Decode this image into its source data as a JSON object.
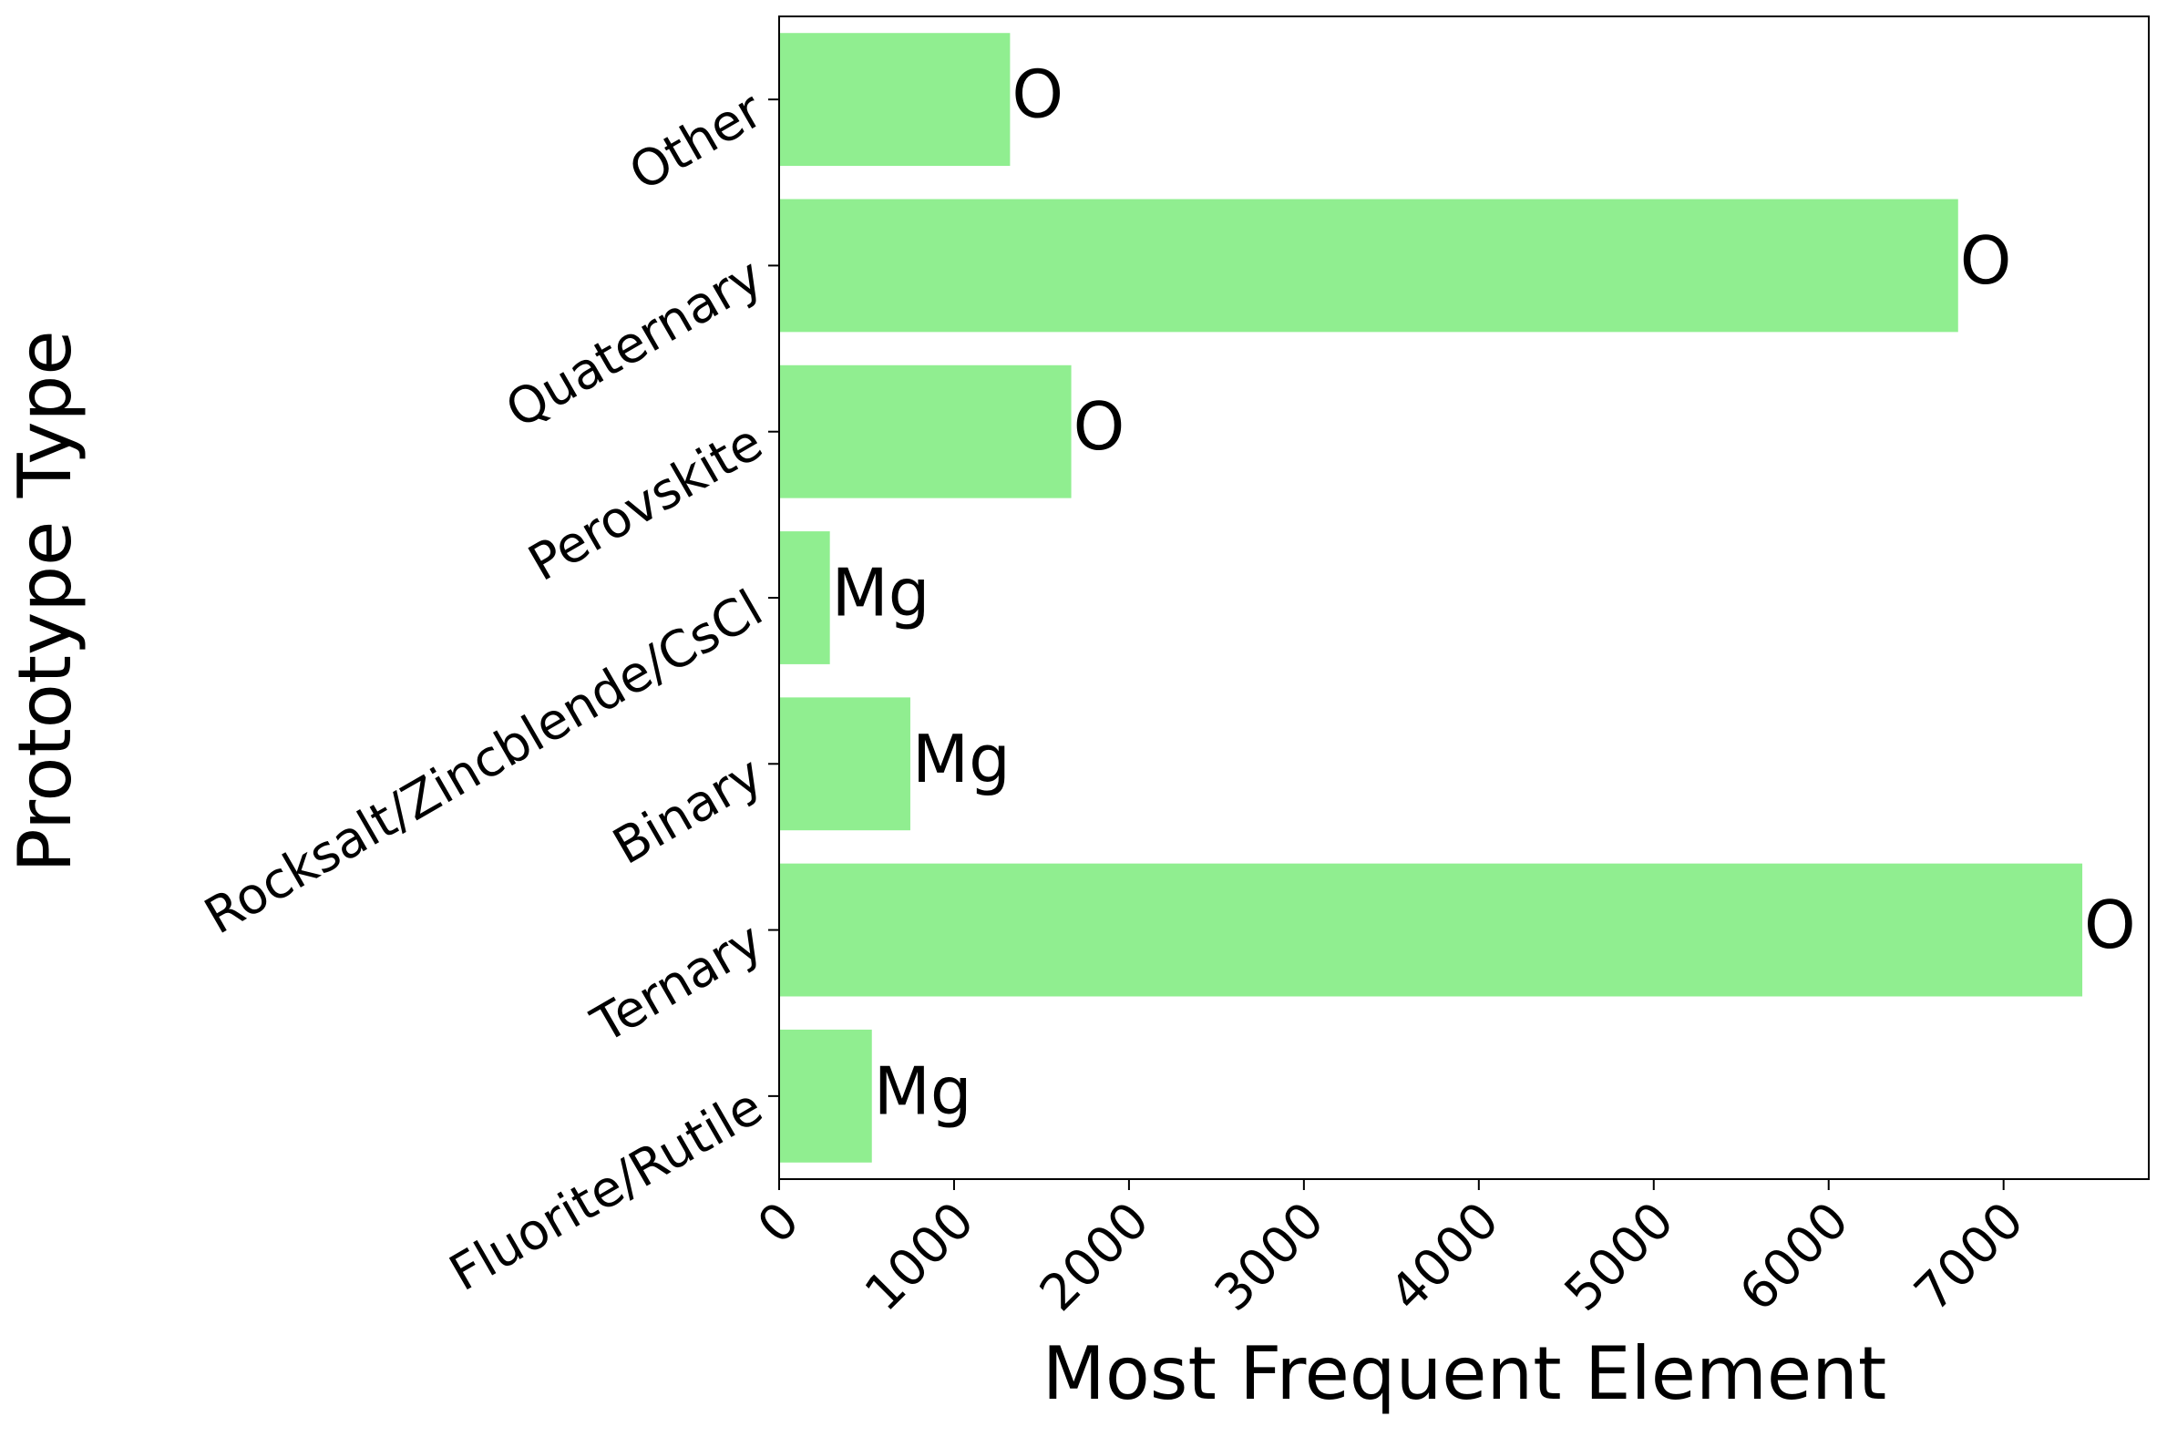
{
  "chart_data": {
    "type": "barh",
    "x_label": "Most Frequent Element",
    "y_label": "Prototype Type",
    "categories": [
      "Fluorite/Rutile",
      "Ternary",
      "Binary",
      "Rocksalt/Zincblende/CsCl",
      "Perovskite",
      "Quaternary",
      "Other"
    ],
    "values": [
      530,
      7450,
      750,
      290,
      1670,
      6740,
      1320
    ],
    "bar_labels": [
      "Mg",
      "O",
      "Mg",
      "Mg",
      "O",
      "O",
      "O"
    ],
    "color": "#90ee90",
    "xlim": [
      0,
      7830
    ],
    "xticks": [
      0,
      1000,
      2000,
      3000,
      4000,
      5000,
      6000,
      7000
    ],
    "grid": false
  }
}
